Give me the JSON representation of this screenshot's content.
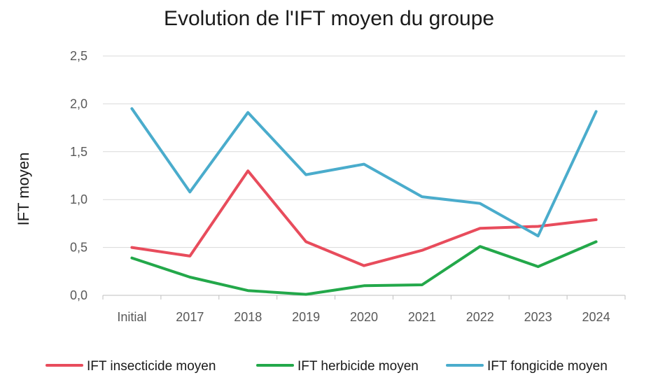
{
  "chart_data": {
    "type": "line",
    "title": "Evolution de l'IFT moyen du groupe",
    "xlabel": "",
    "ylabel": "IFT moyen",
    "categories": [
      "Initial",
      "2017",
      "2018",
      "2019",
      "2020",
      "2021",
      "2022",
      "2023",
      "2024"
    ],
    "ylim": [
      0,
      2.5
    ],
    "yticks": [
      "0,0",
      "0,5",
      "1,0",
      "1,5",
      "2,0",
      "2,5"
    ],
    "grid": true,
    "legend_position": "bottom",
    "series": [
      {
        "name": "IFT insecticide moyen",
        "color": "#e84c5c",
        "values": [
          0.5,
          0.41,
          1.3,
          0.56,
          0.31,
          0.47,
          0.7,
          0.72,
          0.79
        ]
      },
      {
        "name": "IFT herbicide moyen",
        "color": "#23a84a",
        "values": [
          0.39,
          0.19,
          0.05,
          0.01,
          0.1,
          0.11,
          0.51,
          0.3,
          0.56
        ]
      },
      {
        "name": "IFT fongicide moyen",
        "color": "#4aaccc",
        "values": [
          1.95,
          1.08,
          1.91,
          1.26,
          1.37,
          1.03,
          0.96,
          0.62,
          1.92
        ]
      }
    ]
  }
}
